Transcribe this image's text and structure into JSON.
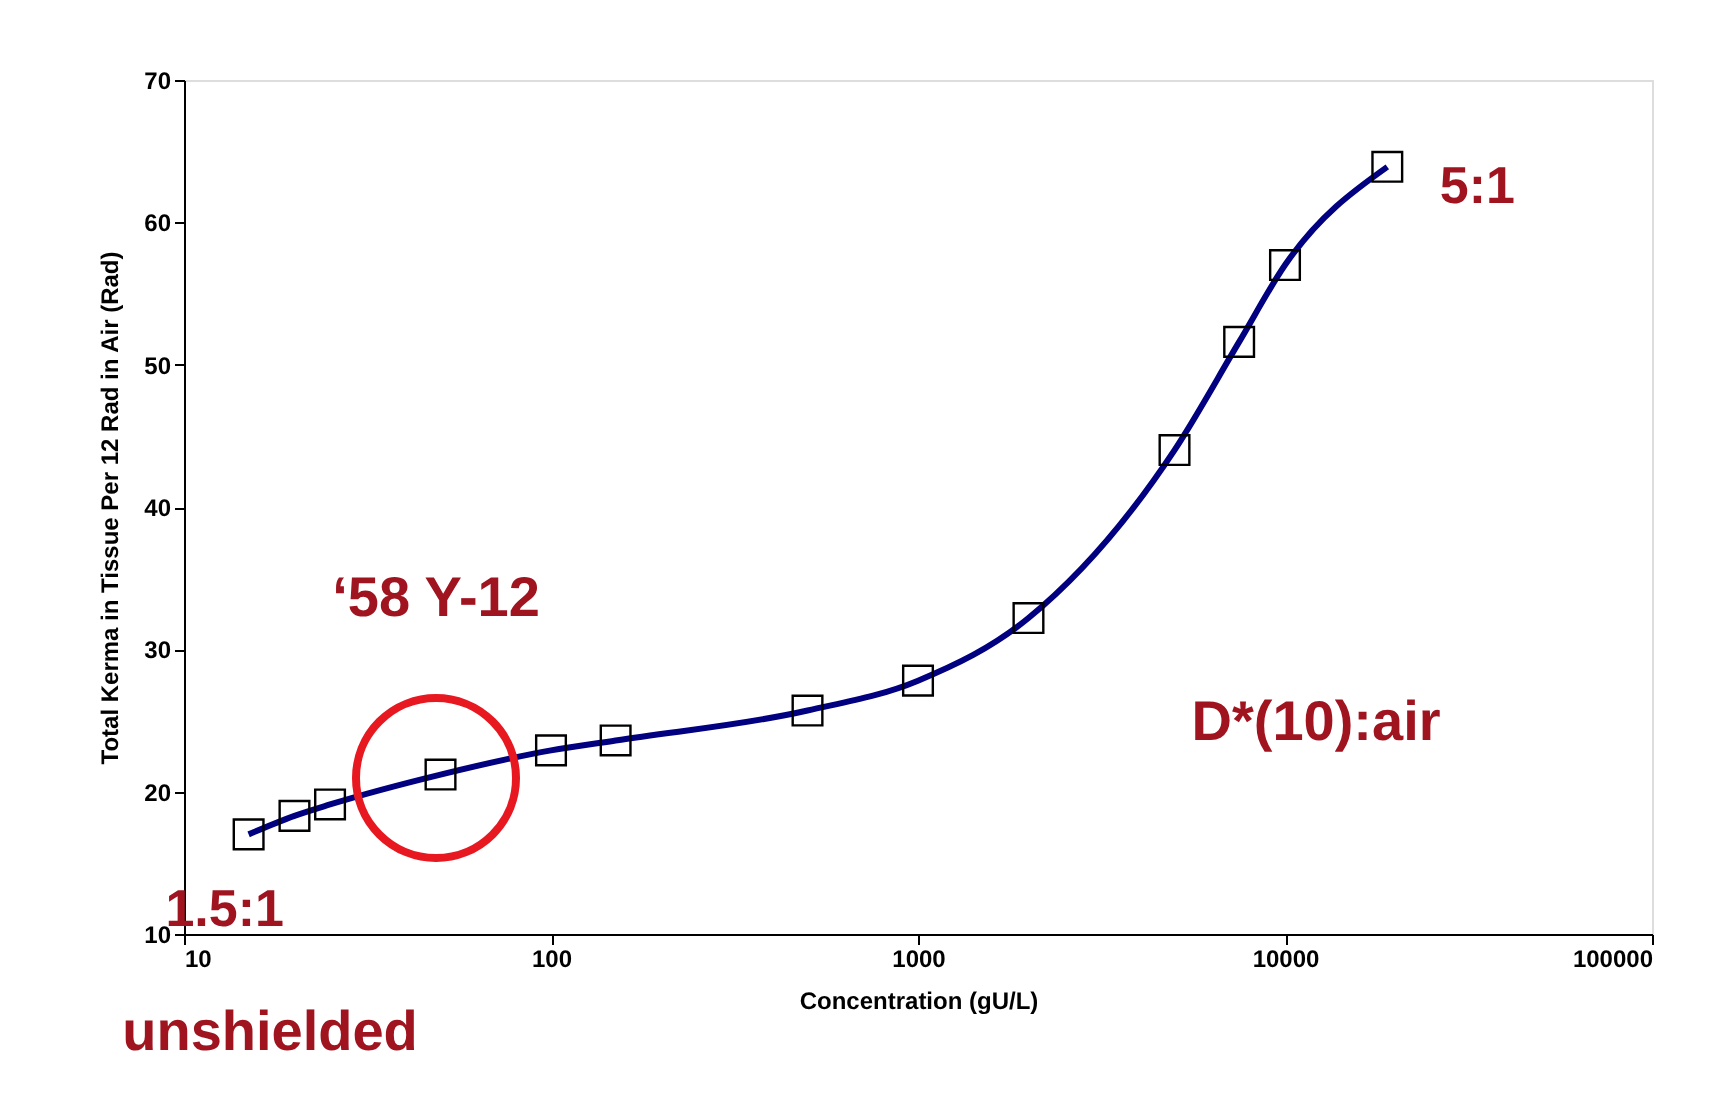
{
  "chart_data": {
    "type": "line",
    "xlabel": "Concentration (gU/L)",
    "ylabel": "Total Kerma in Tissue Per 12 Rad in Air (Rad)",
    "log": "x",
    "xlim": [
      10,
      100000
    ],
    "xticks": [
      10,
      100,
      1000,
      10000,
      100000
    ],
    "ylim": [
      10,
      70
    ],
    "yticks": [
      10,
      20,
      30,
      40,
      50,
      60,
      70
    ],
    "marker": "square",
    "line_style": "solid",
    "series": [
      {
        "color": "#000080",
        "x": [
          15,
          20,
          25,
          50,
          100,
          150,
          500,
          1000,
          2000,
          5000,
          7500,
          10000,
          19000
        ],
        "values": [
          17.0,
          18.3,
          19.1,
          21.2,
          22.9,
          23.6,
          25.7,
          27.8,
          32.2,
          44.0,
          51.6,
          57.0,
          63.9
        ]
      }
    ],
    "annotations": [
      "‘58 Y-12",
      {
        "text": "1.5:1",
        "x": 15,
        "y": 17.0
      },
      {
        "text": "5:1",
        "x": 19000,
        "y": 63.9
      },
      "D*(10):air",
      "unshielded"
    ]
  }
}
